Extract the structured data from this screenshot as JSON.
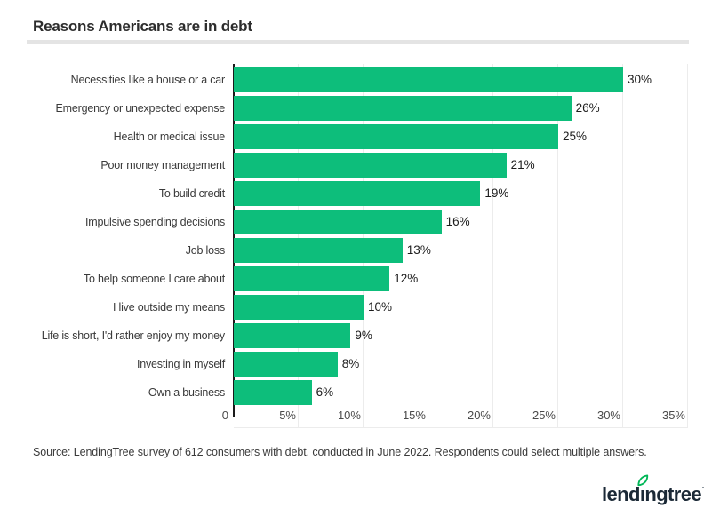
{
  "header": {
    "title": "Reasons Americans are in debt"
  },
  "chart_data": {
    "type": "bar",
    "orientation": "horizontal",
    "title": "Reasons Americans are in debt",
    "categories": [
      "Necessities like a house or a car",
      "Emergency or unexpected expense",
      "Health or medical issue",
      "Poor money management",
      "To build credit",
      "Impulsive spending decisions",
      "Job loss",
      "To help someone I care about",
      "I live outside my means",
      "Life is short, I'd rather enjoy my money",
      "Investing in myself",
      "Own a business"
    ],
    "values": [
      30,
      26,
      25,
      21,
      19,
      16,
      13,
      12,
      10,
      9,
      8,
      6
    ],
    "value_labels": [
      "30%",
      "26%",
      "25%",
      "21%",
      "19%",
      "16%",
      "13%",
      "12%",
      "10%",
      "9%",
      "8%",
      "6%"
    ],
    "x_ticks": [
      "0",
      "5%",
      "10%",
      "15%",
      "20%",
      "25%",
      "30%",
      "35%"
    ],
    "xlim": [
      0,
      35
    ],
    "xlabel": "",
    "ylabel": "",
    "grid": true,
    "legend": false,
    "bar_color": "#0dbe7b"
  },
  "footer": {
    "source": "Source: LendingTree survey of 612 consumers with debt, conducted in June 2022. Respondents could select multiple answers.",
    "logo_text": "lendingtree",
    "logo_leaf_color": "#00b757",
    "logo_text_color": "#1b2936"
  }
}
